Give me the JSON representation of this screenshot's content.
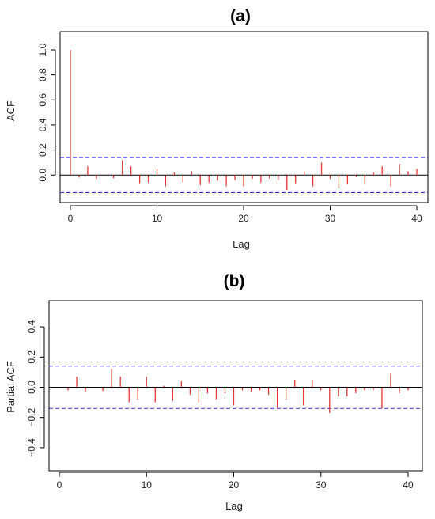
{
  "chart_data": [
    {
      "type": "bar",
      "panel_label": "(a)",
      "xlabel": "Lag",
      "ylabel": "ACF",
      "xlim": [
        0,
        40
      ],
      "ylim": [
        -0.15,
        1.0
      ],
      "x_ticks": [
        "0",
        "10",
        "20",
        "30",
        "40"
      ],
      "y_ticks": [
        "0.0",
        "0.2",
        "0.4",
        "0.6",
        "0.8",
        "1.0"
      ],
      "confidence_band": 0.14,
      "colors": {
        "bars": "#e53935",
        "band": "#3333dd",
        "zero_line": "#000000"
      },
      "lags": [
        0,
        1,
        2,
        3,
        4,
        5,
        6,
        7,
        8,
        9,
        10,
        11,
        12,
        13,
        14,
        15,
        16,
        17,
        18,
        19,
        20,
        21,
        22,
        23,
        24,
        25,
        26,
        27,
        28,
        29,
        30,
        31,
        32,
        33,
        34,
        35,
        36,
        37,
        38,
        39,
        40
      ],
      "values": [
        1.0,
        -0.02,
        0.07,
        -0.03,
        0.005,
        -0.025,
        0.12,
        0.07,
        -0.065,
        -0.06,
        0.05,
        -0.09,
        0.02,
        -0.06,
        0.03,
        -0.08,
        -0.06,
        -0.045,
        -0.09,
        -0.04,
        -0.09,
        -0.03,
        -0.06,
        -0.03,
        -0.04,
        -0.12,
        -0.065,
        0.03,
        -0.09,
        0.1,
        -0.03,
        -0.11,
        -0.07,
        -0.015,
        -0.07,
        0.02,
        0.07,
        -0.09,
        0.09,
        0.03,
        0.05
      ]
    },
    {
      "type": "bar",
      "panel_label": "(b)",
      "xlabel": "Lag",
      "ylabel": "Partial ACF",
      "xlim": [
        0,
        40
      ],
      "ylim": [
        -0.5,
        0.5
      ],
      "x_ticks": [
        "0",
        "10",
        "20",
        "30",
        "40"
      ],
      "y_ticks": [
        "−0.4",
        "−0.2",
        "0.0",
        "0.2",
        "0.4"
      ],
      "confidence_band": 0.14,
      "colors": {
        "bars": "#e53935",
        "band": "#3333dd",
        "zero_line": "#000000"
      },
      "lags": [
        1,
        2,
        3,
        4,
        5,
        6,
        7,
        8,
        9,
        10,
        11,
        12,
        13,
        14,
        15,
        16,
        17,
        18,
        19,
        20,
        21,
        22,
        23,
        24,
        25,
        26,
        27,
        28,
        29,
        30,
        31,
        32,
        33,
        34,
        35,
        36,
        37,
        38,
        39,
        40
      ],
      "values": [
        -0.02,
        0.07,
        -0.03,
        0.0,
        -0.025,
        0.12,
        0.07,
        -0.1,
        -0.08,
        0.07,
        -0.1,
        0.01,
        -0.09,
        0.04,
        -0.05,
        -0.1,
        -0.04,
        -0.08,
        -0.04,
        -0.12,
        -0.02,
        -0.03,
        -0.02,
        -0.05,
        -0.14,
        -0.08,
        0.05,
        -0.12,
        0.05,
        -0.02,
        -0.17,
        -0.06,
        -0.06,
        -0.04,
        -0.02,
        -0.02,
        -0.14,
        0.09,
        -0.04,
        -0.02
      ]
    }
  ]
}
